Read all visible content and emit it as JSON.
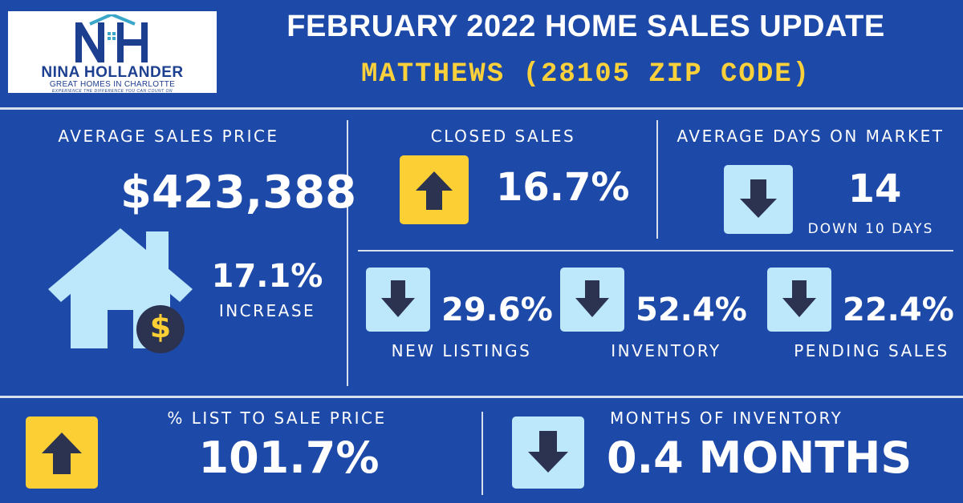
{
  "logo": {
    "name": "NINA HOLLANDER",
    "tagline": "GREAT HOMES IN CHARLOTTE",
    "slogan": "EXPERIENCE THE DIFFERENCE YOU CAN COUNT ON",
    "mark_text": "NH"
  },
  "header": {
    "title": "FEBRUARY 2022 HOME SALES UPDATE",
    "subtitle": "MATTHEWS (28105 ZIP CODE)"
  },
  "colors": {
    "background": "#1d49a8",
    "accent_yellow": "#fccf34",
    "accent_light_blue": "#bde7fb",
    "house_fill": "#bde7fb",
    "arrow": "#2b3350"
  },
  "average_sales_price": {
    "label": "AVERAGE SALES PRICE",
    "value": "$423,388",
    "change": "17.1%",
    "change_label": "INCREASE",
    "icon": "house-dollar-icon",
    "dollar_symbol": "$"
  },
  "closed_sales": {
    "label": "CLOSED SALES",
    "value": "16.7%",
    "direction": "up"
  },
  "days_on_market": {
    "label": "AVERAGE DAYS ON MARKET",
    "value": "14",
    "note": "DOWN 10 DAYS",
    "direction": "down"
  },
  "new_listings": {
    "label": "NEW LISTINGS",
    "value": "29.6%",
    "direction": "down"
  },
  "inventory": {
    "label": "INVENTORY",
    "value": "52.4%",
    "direction": "down"
  },
  "pending_sales": {
    "label": "PENDING SALES",
    "value": "22.4%",
    "direction": "down"
  },
  "list_to_sale": {
    "label": "% LIST TO SALE PRICE",
    "value": "101.7%",
    "direction": "up"
  },
  "months_inventory": {
    "label": "MONTHS OF INVENTORY",
    "value": "0.4 MONTHS",
    "direction": "down"
  }
}
